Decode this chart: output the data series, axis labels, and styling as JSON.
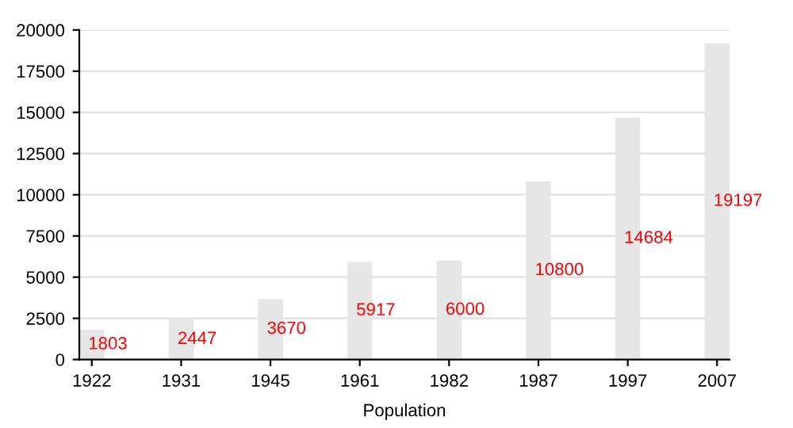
{
  "chart_data": {
    "type": "bar",
    "xlabel": "Population",
    "categories": [
      "1922",
      "1931",
      "1945",
      "1961",
      "1982",
      "1987",
      "1997",
      "2007"
    ],
    "values": [
      1803,
      2447,
      3670,
      5917,
      6000,
      10800,
      14684,
      19197
    ],
    "color": "#e6e6e6",
    "ylim": [
      0,
      20000
    ],
    "yticks": [
      0,
      2500,
      5000,
      7500,
      10000,
      12500,
      15000,
      17500,
      20000
    ],
    "grid": "y",
    "data_labels": true
  }
}
